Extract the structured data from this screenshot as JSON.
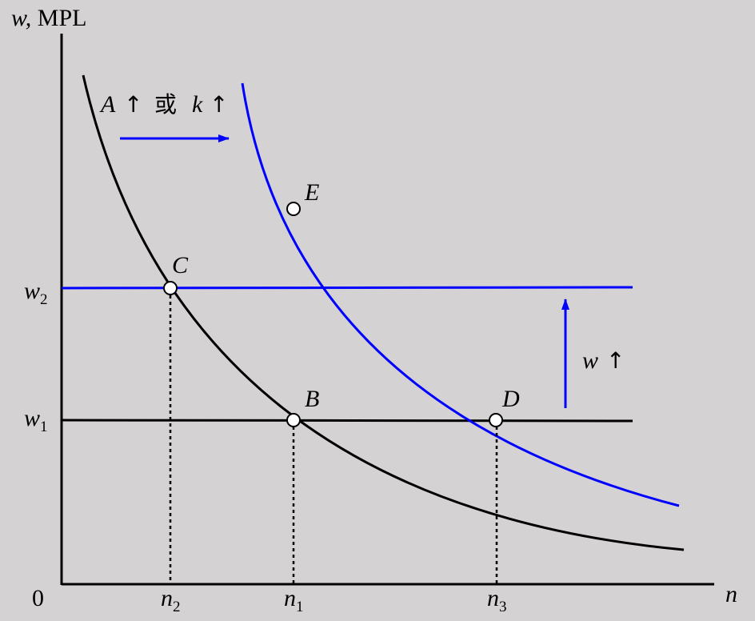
{
  "axes": {
    "y_label_var": "w,",
    "y_label_rest": " MPL",
    "x_label": "n",
    "origin": "0"
  },
  "wage_levels": [
    {
      "symbol": "w",
      "subscript": "2",
      "color": "#0000ff"
    },
    {
      "symbol": "w",
      "subscript": "1",
      "color": "#000000"
    }
  ],
  "labor_levels": [
    {
      "symbol": "n",
      "subscript": "2"
    },
    {
      "symbol": "n",
      "subscript": "1"
    },
    {
      "symbol": "n",
      "subscript": "3"
    }
  ],
  "curves": [
    {
      "name": "MPL (original)",
      "color": "#000000"
    },
    {
      "name": "MPL (shifted)",
      "color": "#0000ff"
    }
  ],
  "points": [
    {
      "label": "C"
    },
    {
      "label": "B"
    },
    {
      "label": "D"
    },
    {
      "label": "E"
    }
  ],
  "annotations": {
    "shift_A": "A",
    "shift_or": "或",
    "shift_k": "k",
    "up_arrow": "↑",
    "wage_w": "w",
    "shift_color": "#0000ff"
  }
}
